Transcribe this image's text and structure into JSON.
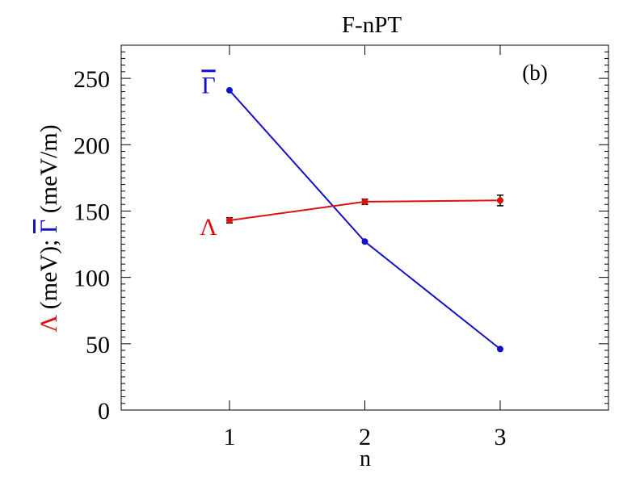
{
  "chart_data": {
    "type": "line",
    "title": "F-nPT",
    "panel_label": "(b)",
    "xlabel": "n",
    "ylabel_parts": [
      {
        "text": "Λ",
        "color": "#dd1111"
      },
      {
        "text": " (meV); ",
        "color": "#000000"
      },
      {
        "text": "Γ",
        "color": "#1111cc",
        "overbar": true
      },
      {
        "text": " (meV/m)",
        "color": "#000000"
      }
    ],
    "x": [
      1,
      2,
      3
    ],
    "xlim": [
      0.2,
      3.8
    ],
    "ylim": [
      0,
      275
    ],
    "xticks": [
      1,
      2,
      3
    ],
    "yticks": [
      0,
      50,
      100,
      150,
      200,
      250
    ],
    "grid": false,
    "series": [
      {
        "name": "Γ",
        "overbar": true,
        "color": "#1111cc",
        "values": [
          241,
          127,
          46
        ],
        "errors": [
          0,
          0,
          0
        ],
        "label_pos": [
          0.0,
          245
        ]
      },
      {
        "name": "Λ",
        "overbar": false,
        "color": "#dd1111",
        "values": [
          143,
          157,
          158
        ],
        "errors": [
          2,
          2,
          4
        ],
        "label_pos": [
          0.0,
          138
        ]
      }
    ]
  }
}
